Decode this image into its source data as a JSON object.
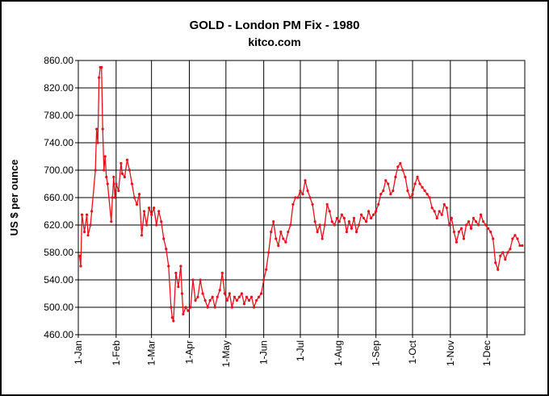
{
  "chart_data": {
    "type": "line",
    "title": "GOLD - London PM Fix - 1980",
    "subtitle": "kitco.com",
    "y_label": "US $ per ounce",
    "x": [
      1,
      2,
      3,
      5,
      7,
      8,
      10,
      11,
      14,
      15,
      16,
      17,
      18,
      19,
      20,
      21,
      22,
      23,
      24,
      27,
      28,
      29,
      30,
      31,
      33,
      35,
      36,
      38,
      40,
      42,
      44,
      46,
      48,
      50,
      52,
      54,
      56,
      58,
      60,
      62,
      64,
      66,
      68,
      70,
      72,
      74,
      76,
      77,
      78,
      80,
      82,
      84,
      85,
      86,
      88,
      90,
      92,
      94,
      96,
      98,
      100,
      102,
      104,
      106,
      108,
      110,
      112,
      114,
      116,
      118,
      120,
      122,
      124,
      126,
      128,
      130,
      132,
      134,
      136,
      138,
      140,
      142,
      144,
      146,
      148,
      150,
      152,
      154,
      156,
      158,
      160,
      162,
      164,
      166,
      168,
      170,
      172,
      174,
      176,
      178,
      180,
      182,
      184,
      186,
      188,
      190,
      192,
      194,
      196,
      198,
      200,
      202,
      204,
      206,
      208,
      210,
      212,
      214,
      216,
      218,
      220,
      222,
      224,
      226,
      228,
      230,
      232,
      234,
      236,
      238,
      240,
      242,
      244,
      246,
      248,
      250,
      252,
      254,
      256,
      258,
      260,
      262,
      264,
      266,
      268,
      270,
      272,
      274,
      276,
      278,
      280,
      282,
      284,
      286,
      288,
      290,
      292,
      294,
      296,
      298,
      300,
      302,
      304,
      306,
      308,
      310,
      312,
      314,
      316,
      318,
      320,
      322,
      324,
      326,
      328,
      330,
      332,
      334,
      336,
      338,
      340,
      342,
      344,
      346,
      348,
      350,
      352,
      354,
      356,
      358,
      360,
      362,
      364
    ],
    "series": [
      {
        "name": "London PM Fix",
        "color": "#e8101a",
        "values": [
          575,
          560,
          635,
          610,
          635,
          605,
          620,
          640,
          700,
          760,
          740,
          835,
          850,
          850,
          760,
          700,
          720,
          690,
          680,
          625,
          660,
          690,
          660,
          680,
          670,
          710,
          695,
          690,
          715,
          700,
          680,
          660,
          650,
          665,
          605,
          640,
          620,
          645,
          635,
          645,
          620,
          640,
          625,
          600,
          585,
          560,
          500,
          485,
          480,
          550,
          530,
          560,
          520,
          490,
          500,
          495,
          500,
          540,
          510,
          515,
          540,
          520,
          510,
          500,
          510,
          515,
          500,
          515,
          525,
          550,
          520,
          510,
          520,
          500,
          515,
          510,
          515,
          520,
          505,
          515,
          510,
          515,
          500,
          510,
          515,
          520,
          540,
          555,
          580,
          610,
          625,
          600,
          590,
          610,
          600,
          595,
          610,
          620,
          650,
          660,
          660,
          670,
          665,
          685,
          670,
          660,
          650,
          625,
          610,
          620,
          600,
          620,
          650,
          640,
          625,
          620,
          630,
          625,
          635,
          630,
          610,
          625,
          615,
          630,
          610,
          620,
          635,
          630,
          625,
          640,
          630,
          635,
          640,
          650,
          665,
          670,
          685,
          680,
          665,
          670,
          690,
          705,
          710,
          700,
          690,
          670,
          660,
          665,
          680,
          690,
          680,
          675,
          670,
          665,
          660,
          645,
          640,
          630,
          640,
          635,
          650,
          645,
          620,
          630,
          610,
          595,
          610,
          615,
          600,
          620,
          625,
          615,
          630,
          625,
          620,
          635,
          625,
          620,
          615,
          610,
          600,
          565,
          555,
          575,
          580,
          570,
          580,
          585,
          600,
          605,
          600,
          590,
          590
        ]
      }
    ],
    "xlim": [
      0,
      366
    ],
    "xticks": [
      {
        "value": 0,
        "label": "1-Jan"
      },
      {
        "value": 31,
        "label": "1-Feb"
      },
      {
        "value": 60,
        "label": "1-Mar"
      },
      {
        "value": 91,
        "label": "1-Apr"
      },
      {
        "value": 121,
        "label": "1-May"
      },
      {
        "value": 152,
        "label": "1-Jun"
      },
      {
        "value": 182,
        "label": "1-Jul"
      },
      {
        "value": 213,
        "label": "1-Aug"
      },
      {
        "value": 244,
        "label": "1-Sep"
      },
      {
        "value": 274,
        "label": "1-Oct"
      },
      {
        "value": 305,
        "label": "1-Nov"
      },
      {
        "value": 335,
        "label": "1-Dec"
      }
    ],
    "ylim": [
      460,
      860
    ],
    "yticks": [
      {
        "value": 460,
        "label": "460.00"
      },
      {
        "value": 500,
        "label": "500.00"
      },
      {
        "value": 540,
        "label": "540.00"
      },
      {
        "value": 580,
        "label": "580.00"
      },
      {
        "value": 620,
        "label": "620.00"
      },
      {
        "value": 660,
        "label": "660.00"
      },
      {
        "value": 700,
        "label": "700.00"
      },
      {
        "value": 740,
        "label": "740.00"
      },
      {
        "value": 780,
        "label": "780.00"
      },
      {
        "value": 820,
        "label": "820.00"
      },
      {
        "value": 860,
        "label": "860.00"
      }
    ],
    "grid": true
  }
}
